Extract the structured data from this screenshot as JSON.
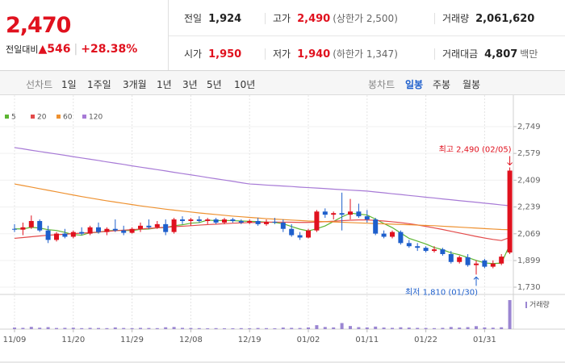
{
  "quote": {
    "price": "2,470",
    "change_label": "전일대비",
    "change_arrow": "▲",
    "change": "546",
    "change_rate": "+28.38%"
  },
  "summary": [
    {
      "label": "전일",
      "value": "1,924"
    },
    {
      "label": "고가",
      "value": "2,490",
      "note": "(상한가 2,500)",
      "color": "#e0111e"
    },
    {
      "label": "거래량",
      "value": "2,061,620"
    },
    {
      "label": "시가",
      "value": "1,950",
      "color": "#e0111e"
    },
    {
      "label": "저가",
      "value": "1,940",
      "note": "(하한가 1,347)",
      "color": "#e0111e"
    },
    {
      "label": "거래대금",
      "value": "4,807",
      "unit": "백만"
    }
  ],
  "toolbar": {
    "line_label": "선차트",
    "line_periods": [
      "1일",
      "1주일",
      "3개월",
      "1년",
      "3년",
      "5년",
      "10년"
    ],
    "candle_label": "봉차트",
    "candle_periods": [
      "일봉",
      "주봉",
      "월봉"
    ],
    "active": "일봉"
  },
  "chart_data": {
    "type": "candlestick",
    "categories": [
      "11/09",
      null,
      null,
      null,
      null,
      null,
      null,
      "11/20",
      null,
      null,
      null,
      null,
      null,
      null,
      "11/29",
      null,
      null,
      null,
      null,
      null,
      null,
      "12/08",
      null,
      null,
      null,
      null,
      null,
      null,
      "12/19",
      null,
      null,
      null,
      null,
      null,
      null,
      "01/02",
      null,
      null,
      null,
      null,
      null,
      null,
      "01/11",
      null,
      null,
      null,
      null,
      null,
      null,
      "01/22",
      null,
      null,
      null,
      null,
      null,
      null,
      "01/31",
      null,
      null,
      null
    ],
    "candles": [
      [
        2100,
        2130,
        2080,
        2095
      ],
      [
        2095,
        2140,
        2060,
        2110
      ],
      [
        2110,
        2185,
        2100,
        2150
      ],
      [
        2150,
        2160,
        2080,
        2090
      ],
      [
        2090,
        2120,
        2010,
        2030
      ],
      [
        2030,
        2080,
        2020,
        2070
      ],
      [
        2070,
        2100,
        2040,
        2050
      ],
      [
        2050,
        2090,
        2040,
        2080
      ],
      [
        2080,
        2110,
        2060,
        2070
      ],
      [
        2070,
        2120,
        2060,
        2110
      ],
      [
        2110,
        2140,
        2070,
        2080
      ],
      [
        2080,
        2110,
        2060,
        2100
      ],
      [
        2100,
        2160,
        2080,
        2090
      ],
      [
        2090,
        2120,
        2060,
        2075
      ],
      [
        2075,
        2110,
        2070,
        2100
      ],
      [
        2100,
        2140,
        2080,
        2120
      ],
      [
        2120,
        2160,
        2100,
        2110
      ],
      [
        2110,
        2150,
        2100,
        2130
      ],
      [
        2130,
        2160,
        2060,
        2080
      ],
      [
        2080,
        2170,
        2070,
        2160
      ],
      [
        2160,
        2180,
        2130,
        2150
      ],
      [
        2150,
        2170,
        2120,
        2160
      ],
      [
        2160,
        2180,
        2140,
        2150
      ],
      [
        2150,
        2170,
        2130,
        2160
      ],
      [
        2160,
        2170,
        2130,
        2140
      ],
      [
        2140,
        2170,
        2130,
        2160
      ],
      [
        2160,
        2170,
        2140,
        2150
      ],
      [
        2150,
        2160,
        2130,
        2140
      ],
      [
        2140,
        2160,
        2130,
        2150
      ],
      [
        2150,
        2170,
        2120,
        2130
      ],
      [
        2130,
        2160,
        2120,
        2145
      ],
      [
        2145,
        2170,
        2130,
        2140
      ],
      [
        2140,
        2160,
        2080,
        2100
      ],
      [
        2100,
        2130,
        2050,
        2060
      ],
      [
        2060,
        2080,
        2030,
        2045
      ],
      [
        2045,
        2100,
        2040,
        2090
      ],
      [
        2090,
        2220,
        2080,
        2210
      ],
      [
        2210,
        2230,
        2170,
        2190
      ],
      [
        2190,
        2210,
        2160,
        2200
      ],
      [
        2200,
        2330,
        2090,
        2190
      ],
      [
        2190,
        2290,
        2160,
        2210
      ],
      [
        2210,
        2260,
        2170,
        2180
      ],
      [
        2180,
        2220,
        2140,
        2160
      ],
      [
        2160,
        2170,
        2060,
        2070
      ],
      [
        2070,
        2090,
        2040,
        2050
      ],
      [
        2050,
        2090,
        2040,
        2080
      ],
      [
        2080,
        2090,
        2000,
        2010
      ],
      [
        2010,
        2030,
        1980,
        1990
      ],
      [
        1990,
        2010,
        1960,
        1980
      ],
      [
        1980,
        1990,
        1950,
        1960
      ],
      [
        1960,
        1990,
        1950,
        1970
      ],
      [
        1970,
        1980,
        1930,
        1940
      ],
      [
        1940,
        1960,
        1880,
        1890
      ],
      [
        1890,
        1930,
        1880,
        1920
      ],
      [
        1920,
        1940,
        1860,
        1870
      ],
      [
        1870,
        1900,
        1810,
        1880
      ],
      [
        1900,
        1910,
        1850,
        1860
      ],
      [
        1860,
        1900,
        1850,
        1880
      ],
      [
        1880,
        1940,
        1870,
        1924
      ],
      [
        1950,
        2490,
        1940,
        2470
      ]
    ],
    "up_color": "#e0111e",
    "down_color": "#1e5fcc",
    "series": [
      {
        "name": "5",
        "color": "#5cb531",
        "values": [
          2100,
          2100,
          2110,
          2105,
          2095,
          2090,
          2078,
          2064,
          2060,
          2076,
          2078,
          2088,
          2090,
          2091,
          2089,
          2097,
          2099,
          2107,
          2108,
          2120,
          2126,
          2136,
          2140,
          2156,
          2152,
          2154,
          2152,
          2150,
          2148,
          2146,
          2143,
          2141,
          2133,
          2115,
          2098,
          2087,
          2101,
          2119,
          2147,
          2176,
          2200,
          2194,
          2188,
          2162,
          2134,
          2108,
          2074,
          2040,
          2022,
          2004,
          1982,
          1968,
          1948,
          1936,
          1918,
          1900,
          1884,
          1880,
          1883,
          1999
        ]
      },
      {
        "name": "20",
        "color": "#e34a4a",
        "values": [
          2040,
          2045,
          2050,
          2055,
          2060,
          2063,
          2066,
          2070,
          2073,
          2076,
          2080,
          2084,
          2088,
          2092,
          2095,
          2099,
          2103,
          2107,
          2110,
          2114,
          2117,
          2120,
          2124,
          2127,
          2130,
          2133,
          2136,
          2138,
          2140,
          2141,
          2142,
          2143,
          2143,
          2142,
          2141,
          2141,
          2143,
          2146,
          2149,
          2152,
          2155,
          2157,
          2157,
          2154,
          2150,
          2145,
          2140,
          2133,
          2125,
          2116,
          2106,
          2096,
          2085,
          2074,
          2063,
          2052,
          2042,
          2033,
          2026,
          2045
        ]
      },
      {
        "name": "60",
        "color": "#ee9130",
        "values": [
          2385,
          2375,
          2365,
          2355,
          2345,
          2335,
          2325,
          2315,
          2305,
          2296,
          2287,
          2278,
          2270,
          2262,
          2254,
          2246,
          2239,
          2232,
          2225,
          2219,
          2213,
          2207,
          2201,
          2196,
          2191,
          2186,
          2181,
          2177,
          2173,
          2169,
          2165,
          2162,
          2159,
          2156,
          2153,
          2150,
          2148,
          2146,
          2144,
          2142,
          2140,
          2138,
          2136,
          2134,
          2132,
          2130,
          2128,
          2126,
          2124,
          2122,
          2120,
          2117,
          2114,
          2111,
          2108,
          2105,
          2102,
          2099,
          2096,
          2095
        ]
      },
      {
        "name": "120",
        "color": "#a77ad6",
        "values": [
          2616,
          2608,
          2599,
          2591,
          2583,
          2575,
          2567,
          2558,
          2550,
          2542,
          2534,
          2525,
          2517,
          2509,
          2500,
          2492,
          2484,
          2476,
          2468,
          2459,
          2451,
          2443,
          2435,
          2426,
          2418,
          2410,
          2402,
          2393,
          2385,
          2382,
          2378,
          2375,
          2372,
          2369,
          2365,
          2362,
          2359,
          2356,
          2352,
          2349,
          2346,
          2343,
          2340,
          2334,
          2329,
          2323,
          2318,
          2312,
          2307,
          2301,
          2296,
          2290,
          2285,
          2279,
          2274,
          2269,
          2263,
          2258,
          2252,
          2247
        ]
      }
    ],
    "volume": {
      "name": "거래량",
      "color": "#9b86d2",
      "values": [
        110000,
        90000,
        160000,
        100000,
        140000,
        80000,
        90000,
        100000,
        70000,
        90000,
        80000,
        70000,
        120000,
        80000,
        70000,
        90000,
        80000,
        70000,
        130000,
        150000,
        90000,
        80000,
        70000,
        60000,
        70000,
        60000,
        60000,
        70000,
        60000,
        80000,
        70000,
        60000,
        110000,
        90000,
        80000,
        120000,
        280000,
        150000,
        120000,
        430000,
        220000,
        140000,
        120000,
        180000,
        110000,
        90000,
        130000,
        110000,
        90000,
        80000,
        70000,
        90000,
        150000,
        110000,
        140000,
        210000,
        120000,
        100000,
        130000,
        2061620
      ]
    },
    "high_label": "최고 2,490 (02/05)",
    "low_label": "최저 1,810 (01/30)",
    "ylim": [
      1684,
      2887
    ],
    "yticks": [
      {
        "value": 1730,
        "label": "1,730"
      },
      {
        "value": 1899,
        "label": "1,899"
      },
      {
        "value": 2069,
        "label": "2,069"
      },
      {
        "value": 2239,
        "label": "2,239"
      },
      {
        "value": 2409,
        "label": "2,409"
      },
      {
        "value": 2579,
        "label": "2,579"
      },
      {
        "value": 2749,
        "label": "2,749"
      }
    ],
    "grid": true
  }
}
